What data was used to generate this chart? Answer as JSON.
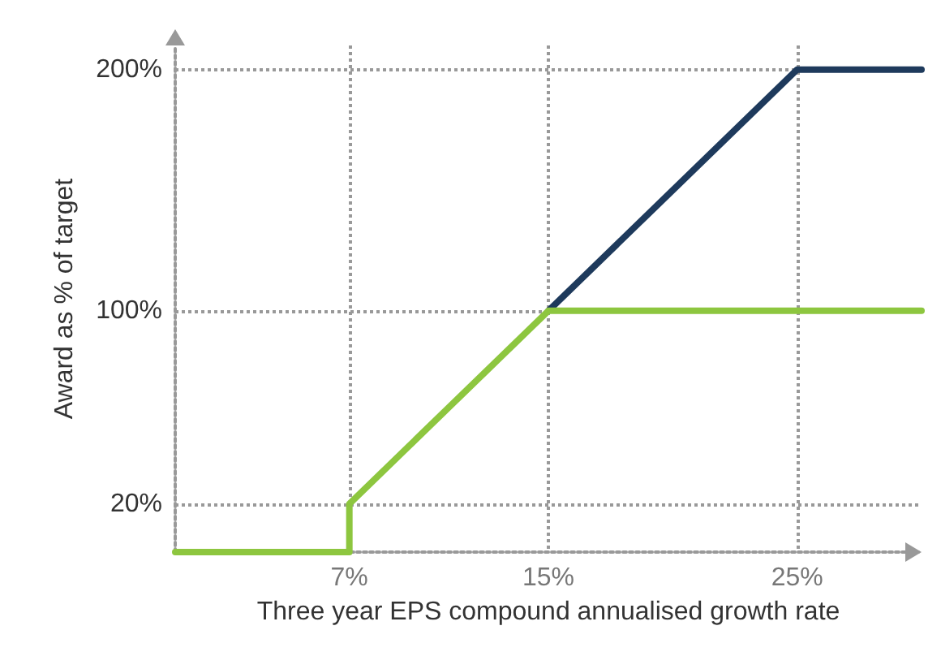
{
  "chart_data": {
    "type": "line",
    "xlabel": "Three year EPS compound annualised growth rate",
    "ylabel": "Award as % of target",
    "series": [
      {
        "color": "#1e3a5c",
        "x": [
          15,
          25,
          30
        ],
        "values": [
          100,
          200,
          200
        ]
      },
      {
        "color": "#8dc63f",
        "x": [
          0,
          7,
          7,
          15,
          30
        ],
        "values": [
          0,
          0,
          20,
          100,
          100
        ]
      }
    ],
    "xlim": [
      0,
      30
    ],
    "ylim": [
      0,
      210
    ],
    "xticks": [
      {
        "value": 7,
        "label": "7%"
      },
      {
        "value": 15,
        "label": "15%"
      },
      {
        "value": 25,
        "label": "25%"
      }
    ],
    "yticks": [
      {
        "value": 20,
        "label": "20%"
      },
      {
        "value": 100,
        "label": "100%"
      },
      {
        "value": 200,
        "label": "200%"
      }
    ],
    "grid": true,
    "marker": "none"
  }
}
